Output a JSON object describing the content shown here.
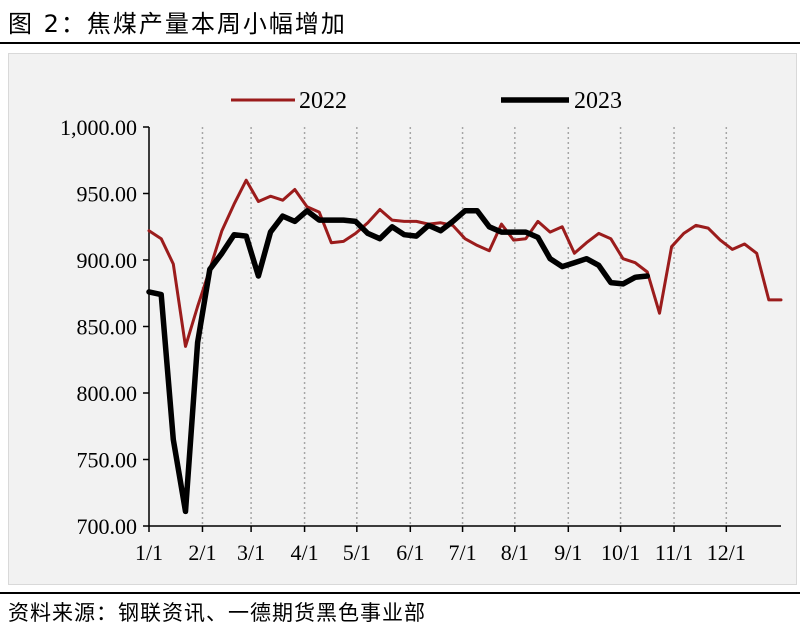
{
  "figure": {
    "title": "图 2：焦煤产量本周小幅增加",
    "source": "资料来源：钢联资讯、一德期货黑色事业部"
  },
  "chart_data": {
    "type": "line",
    "title": "焦煤产量本周小幅增加",
    "xlabel": "",
    "ylabel": "",
    "ylim": [
      700,
      1000
    ],
    "yticks": [
      700,
      750,
      800,
      850,
      900,
      950,
      1000
    ],
    "ytick_labels": [
      "700.00",
      "750.00",
      "800.00",
      "850.00",
      "900.00",
      "950.00",
      "1,000.00"
    ],
    "xlim": [
      1,
      53
    ],
    "xticks": [
      1,
      5.4,
      9.4,
      13.8,
      18.1,
      22.5,
      26.8,
      31.1,
      35.5,
      39.8,
      44.2,
      48.5
    ],
    "xtick_labels": [
      "1/1",
      "2/1",
      "3/1",
      "4/1",
      "5/1",
      "6/1",
      "7/1",
      "8/1",
      "9/1",
      "10/1",
      "11/1",
      "12/1"
    ],
    "grid": "vertical dotted",
    "legend_position": "top",
    "series": [
      {
        "name": "2022",
        "color": "#9b1c1c",
        "x": [
          1,
          2,
          3,
          4,
          5,
          6,
          7,
          8,
          9,
          10,
          11,
          12,
          13,
          14,
          15,
          16,
          17,
          18,
          19,
          20,
          21,
          22,
          23,
          24,
          25,
          26,
          27,
          28,
          29,
          30,
          31,
          32,
          33,
          34,
          35,
          36,
          37,
          38,
          39,
          40,
          41,
          42,
          43,
          44,
          45,
          46,
          47,
          48,
          49,
          50,
          51,
          52,
          53
        ],
        "values": [
          922,
          916,
          897,
          835,
          865,
          893,
          922,
          942,
          960,
          944,
          948,
          945,
          953,
          940,
          936,
          913,
          914,
          920,
          928,
          938,
          930,
          929,
          929,
          927,
          928,
          926,
          916,
          911,
          907,
          927,
          915,
          916,
          929,
          921,
          925,
          905,
          913,
          920,
          916,
          901,
          898,
          891,
          860,
          910,
          920,
          926,
          924,
          915,
          908,
          912,
          905,
          870,
          870
        ]
      },
      {
        "name": "2023",
        "color": "#000000",
        "x": [
          1,
          2,
          3,
          4,
          5,
          6,
          7,
          8,
          9,
          10,
          11,
          12,
          13,
          14,
          15,
          16,
          17,
          18,
          19,
          20,
          21,
          22,
          23,
          24,
          25,
          26,
          27,
          28,
          29,
          30,
          31,
          32,
          33,
          34,
          35,
          36,
          37,
          38,
          39,
          40,
          41,
          42
        ],
        "values": [
          876,
          874,
          765,
          711,
          838,
          893,
          905,
          919,
          918,
          888,
          921,
          933,
          929,
          937,
          930,
          930,
          930,
          929,
          920,
          916,
          925,
          919,
          918,
          926,
          922,
          929,
          937,
          937,
          925,
          921,
          921,
          921,
          917,
          901,
          895,
          898,
          901,
          896,
          883,
          882,
          887,
          888
        ]
      }
    ]
  }
}
